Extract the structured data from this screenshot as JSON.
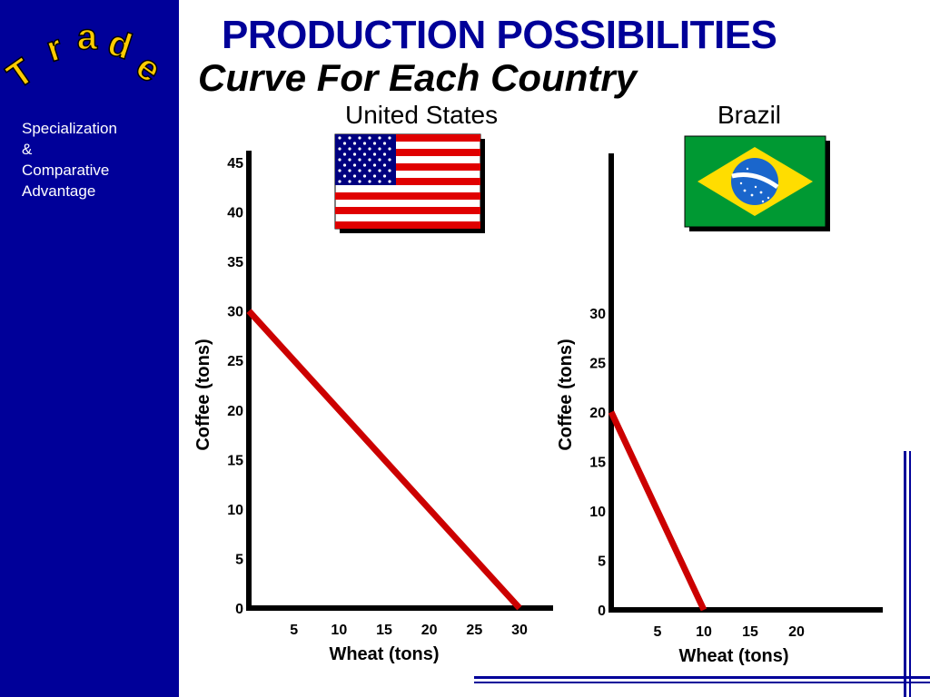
{
  "sidebar": {
    "logo_text": "Trade",
    "subtitle": "Specialization\n&\nComparative\nAdvantage",
    "bg_color": "#000099",
    "logo_color": "#ffcc00"
  },
  "title": "PRODUCTION POSSIBILITIES",
  "subtitle": "Curve For Each Country",
  "flags": [
    {
      "country": "United States",
      "icon": "us-flag-icon"
    },
    {
      "country": "Brazil",
      "icon": "brazil-flag-icon"
    }
  ],
  "chart_data": [
    {
      "type": "line",
      "title": "United States",
      "xlabel": "Wheat (tons)",
      "ylabel": "Coffee (tons)",
      "xlim": [
        0,
        30
      ],
      "ylim": [
        0,
        45
      ],
      "x_ticks": [
        "5",
        "10",
        "15",
        "20",
        "25",
        "30"
      ],
      "y_ticks": [
        "0",
        "5",
        "10",
        "15",
        "20",
        "25",
        "30",
        "35",
        "40",
        "45"
      ],
      "series": [
        {
          "x": [
            0,
            30
          ],
          "y": [
            30,
            0
          ],
          "color": "#cc0000"
        }
      ],
      "grid": false
    },
    {
      "type": "line",
      "title": "Brazil",
      "xlabel": "Wheat (tons)",
      "ylabel": "Coffee (tons)",
      "xlim": [
        0,
        20
      ],
      "ylim": [
        0,
        30
      ],
      "x_ticks": [
        "5",
        "10",
        "15",
        "20"
      ],
      "y_ticks": [
        "0",
        "5",
        "10",
        "15",
        "20",
        "25",
        "30"
      ],
      "series": [
        {
          "x": [
            0,
            10
          ],
          "y": [
            20,
            0
          ],
          "color": "#cc0000"
        }
      ],
      "grid": false
    }
  ]
}
